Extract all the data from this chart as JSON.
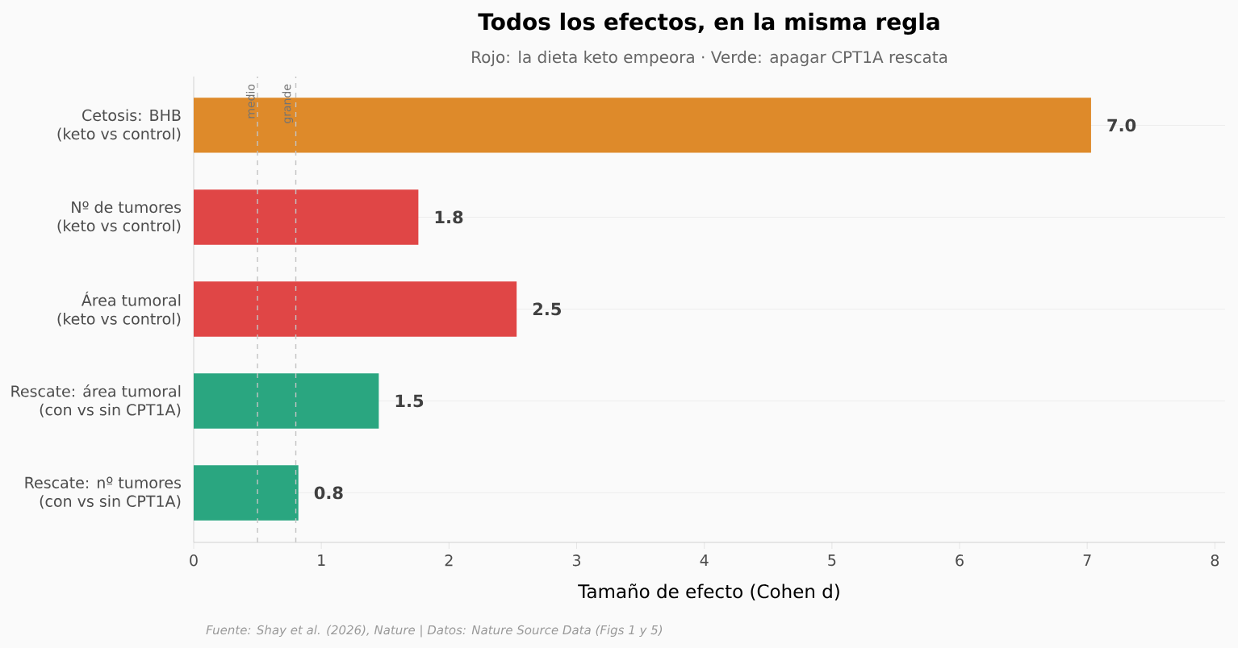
{
  "chart_data": {
    "type": "bar",
    "orientation": "horizontal",
    "title": "Todos los efectos, en la misma regla",
    "subtitle": "Rojo: la dieta keto empeora · Verde: apagar CPT1A rescata",
    "xlabel": "Tamaño de efecto (Cohen d)",
    "categories": [
      "Cetosis: BHB\n(keto vs control)",
      "Nº de tumores\n(keto vs control)",
      "Área tumoral\n(keto vs control)",
      "Rescate: área tumoral\n(con vs sin CPT1A)",
      "Rescate: nº tumores\n(con vs sin CPT1A)"
    ],
    "values": [
      7.03,
      1.76,
      2.53,
      1.45,
      0.82
    ],
    "value_labels": [
      "7.0",
      "1.8",
      "2.5",
      "1.5",
      "0.8"
    ],
    "colors": [
      "#de8a2a",
      "#e04646",
      "#e04646",
      "#2aa680",
      "#2aa680"
    ],
    "xlim": [
      0,
      8.08
    ],
    "xticks": [
      0,
      1,
      2,
      3,
      4,
      5,
      6,
      7,
      8
    ],
    "grid": "y",
    "ref_lines": [
      {
        "axis": "x",
        "value": 0.5,
        "label": "medio",
        "color": "#c4c4c4",
        "line_style": "dashed"
      },
      {
        "axis": "x",
        "value": 0.8,
        "label": "grande",
        "color": "#c4c4c4",
        "line_style": "dashed"
      }
    ],
    "annotations": [
      "Fuente: Shay et al. (2026), Nature | Datos: Nature Source Data (Figs 1 y 5)"
    ]
  }
}
